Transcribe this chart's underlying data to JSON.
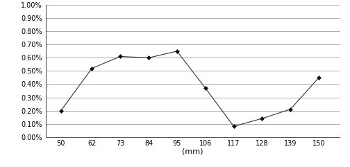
{
  "x": [
    50,
    62,
    73,
    84,
    95,
    106,
    117,
    128,
    139,
    150
  ],
  "y": [
    0.002,
    0.0052,
    0.0061,
    0.006,
    0.0065,
    0.0037,
    0.0008,
    0.0014,
    0.0021,
    0.0045
  ],
  "xlabel": "(mm)",
  "xticks": [
    50,
    62,
    73,
    84,
    95,
    106,
    117,
    128,
    139,
    150
  ],
  "ytick_vals": [
    0.0,
    0.001,
    0.002,
    0.003,
    0.004,
    0.005,
    0.006,
    0.007,
    0.008,
    0.009,
    0.01
  ],
  "ytick_labels": [
    "0.00%",
    "0.10%",
    "0.20%",
    "0.30%",
    "0.40%",
    "0.50%",
    "0.60%",
    "0.70%",
    "0.80%",
    "0.90%",
    "1.00%"
  ],
  "ylim": [
    0.0,
    0.01
  ],
  "xlim": [
    44,
    158
  ],
  "line_color": "#333333",
  "marker": "D",
  "marker_size": 3,
  "marker_color": "#111111",
  "bg_color": "#ffffff",
  "grid_color": "#888888",
  "line_width": 0.8,
  "spine_color": "#555555"
}
